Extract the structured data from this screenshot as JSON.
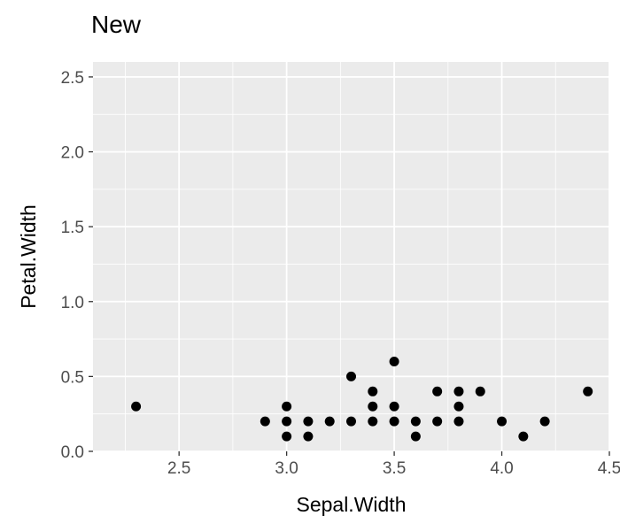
{
  "chart_data": {
    "type": "scatter",
    "title": "New",
    "xlabel": "Sepal.Width",
    "ylabel": "Petal.Width",
    "xlim": [
      2.1,
      4.5
    ],
    "ylim": [
      0.0,
      2.6
    ],
    "x_ticks": [
      "2.5",
      "3.0",
      "3.5",
      "4.0",
      "4.5"
    ],
    "y_ticks": [
      "0.0",
      "0.5",
      "1.0",
      "1.5",
      "2.0",
      "2.5"
    ],
    "grid": true,
    "legend": "none",
    "colors": {
      "panel": "#ebebeb",
      "grid": "#ffffff",
      "point": "#000000"
    },
    "series": [
      {
        "x": [
          2.3,
          2.9,
          3.0,
          3.0,
          3.0,
          3.1,
          3.1,
          3.2,
          3.3,
          3.3,
          3.4,
          3.4,
          3.4,
          3.5,
          3.5,
          3.5,
          3.6,
          3.6,
          3.7,
          3.7,
          3.8,
          3.8,
          3.8,
          3.9,
          4.0,
          4.1,
          4.2,
          4.4
        ],
        "y": [
          0.3,
          0.2,
          0.1,
          0.2,
          0.3,
          0.1,
          0.2,
          0.2,
          0.2,
          0.5,
          0.2,
          0.3,
          0.4,
          0.2,
          0.3,
          0.6,
          0.1,
          0.2,
          0.2,
          0.4,
          0.2,
          0.3,
          0.4,
          0.4,
          0.2,
          0.1,
          0.2,
          0.4
        ]
      }
    ]
  }
}
